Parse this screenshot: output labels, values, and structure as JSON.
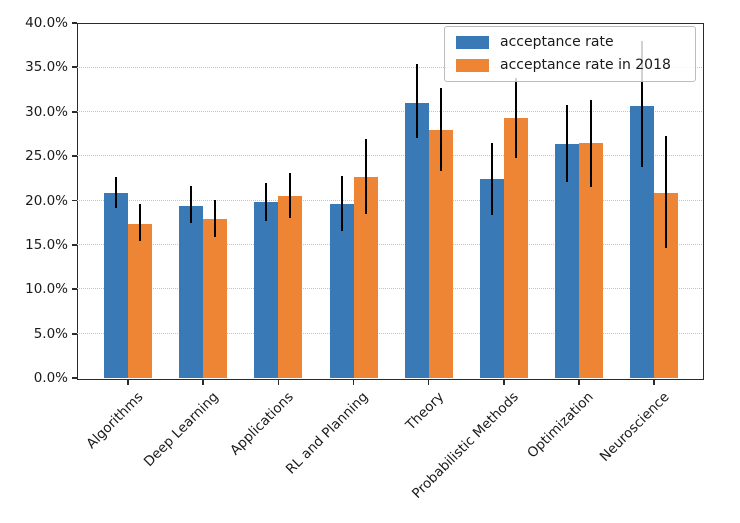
{
  "chart_data": {
    "type": "bar",
    "title": "",
    "xlabel": "",
    "ylabel": "",
    "categories": [
      "Algorithms",
      "Deep Learning",
      "Applications",
      "RL and Planning",
      "Theory",
      "Probabilistic Methods",
      "Optimization",
      "Neuroscience"
    ],
    "series": [
      {
        "name": "acceptance rate",
        "color": "#3879b6",
        "values": [
          20.8,
          19.4,
          19.8,
          19.6,
          31.0,
          22.4,
          26.4,
          30.7
        ],
        "error_low": [
          19.1,
          17.5,
          17.7,
          16.6,
          27.0,
          18.4,
          22.1,
          23.8
        ],
        "error_high": [
          22.6,
          21.6,
          22.0,
          22.8,
          35.4,
          26.5,
          30.8,
          38.0
        ]
      },
      {
        "name": "acceptance rate in 2018",
        "color": "#ee8535",
        "values": [
          17.4,
          17.9,
          20.5,
          22.6,
          28.0,
          29.3,
          26.5,
          20.8
        ],
        "error_low": [
          15.4,
          15.9,
          18.0,
          18.5,
          23.3,
          24.8,
          21.5,
          14.6
        ],
        "error_high": [
          19.6,
          20.1,
          23.1,
          26.9,
          32.7,
          33.8,
          31.3,
          27.3
        ]
      }
    ],
    "error_bar_color": "#000000",
    "ylim": [
      0,
      40
    ],
    "ytick_values": [
      0,
      5,
      10,
      15,
      20,
      25,
      30,
      35,
      40
    ],
    "ytick_labels": [
      "0.0%",
      "5.0%",
      "10.0%",
      "15.0%",
      "20.0%",
      "25.0%",
      "30.0%",
      "35.0%",
      "40.0%"
    ],
    "grid": "horizontal-dotted",
    "legend_position": "upper-right"
  }
}
